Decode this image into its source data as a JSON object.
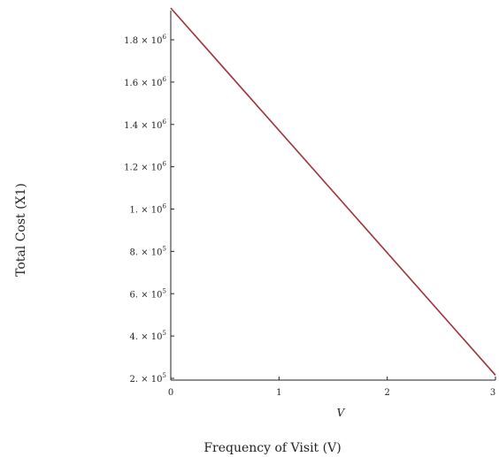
{
  "chart_data": {
    "type": "line",
    "title": "",
    "xlabel": "Frequency of Visit (V)",
    "ylabel": "Total Cost (X1)",
    "x_axis_symbol": "V",
    "xlim": [
      0,
      3
    ],
    "ylim": [
      200000,
      1950000
    ],
    "grid": false,
    "legend": "none",
    "x_ticks": [
      {
        "value": 0,
        "label": "0"
      },
      {
        "value": 1,
        "label": "1"
      },
      {
        "value": 2,
        "label": "2"
      },
      {
        "value": 3,
        "label": "3"
      }
    ],
    "y_ticks": [
      {
        "value": 200000,
        "mantissa": "2.",
        "exp": "5"
      },
      {
        "value": 400000,
        "mantissa": "4.",
        "exp": "5"
      },
      {
        "value": 600000,
        "mantissa": "6.",
        "exp": "5"
      },
      {
        "value": 800000,
        "mantissa": "8.",
        "exp": "5"
      },
      {
        "value": 1000000,
        "mantissa": "1.",
        "exp": "6"
      },
      {
        "value": 1200000,
        "mantissa": "1.2",
        "exp": "6"
      },
      {
        "value": 1400000,
        "mantissa": "1.4",
        "exp": "6"
      },
      {
        "value": 1600000,
        "mantissa": "1.6",
        "exp": "6"
      },
      {
        "value": 1800000,
        "mantissa": "1.8",
        "exp": "6"
      }
    ],
    "series": [
      {
        "color": "#a0303a",
        "points": [
          {
            "x": 0,
            "y": 1950000
          },
          {
            "x": 3,
            "y": 215000
          }
        ]
      }
    ]
  }
}
